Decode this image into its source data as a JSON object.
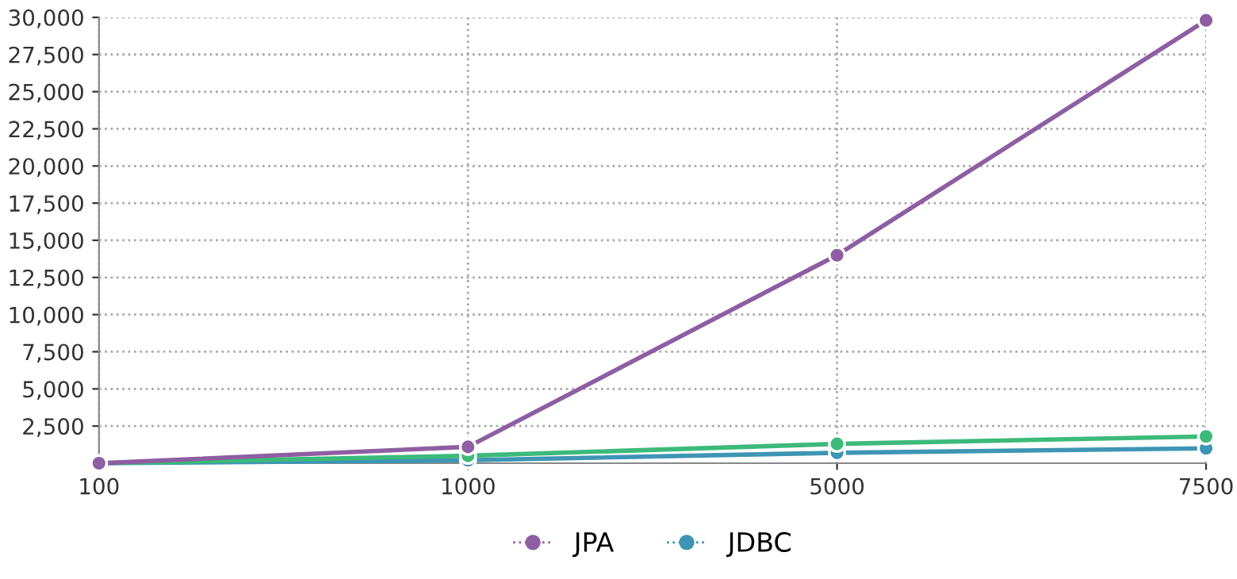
{
  "chart_data": {
    "type": "line",
    "categories": [
      "100",
      "1000",
      "5000",
      "7500"
    ],
    "series": [
      {
        "name": "JPA",
        "color": "#8e5ea2",
        "values": [
          0,
          1100,
          14000,
          29800
        ]
      },
      {
        "color": "#3cba7a",
        "values": [
          0,
          500,
          1300,
          1800
        ]
      },
      {
        "name": "JDBC",
        "color": "#3e95b5",
        "values": [
          0,
          200,
          700,
          1000
        ]
      }
    ],
    "ylim": [
      0,
      30000
    ],
    "yticks": [
      {
        "value": 2500,
        "label": "2,500"
      },
      {
        "value": 5000,
        "label": "5,000"
      },
      {
        "value": 7500,
        "label": "7,500"
      },
      {
        "value": 10000,
        "label": "10,000"
      },
      {
        "value": 12500,
        "label": "12,500"
      },
      {
        "value": 15000,
        "label": "15,000"
      },
      {
        "value": 17500,
        "label": "17,500"
      },
      {
        "value": 20000,
        "label": "20,000"
      },
      {
        "value": 22500,
        "label": "22,500"
      },
      {
        "value": 25000,
        "label": "25,000"
      },
      {
        "value": 27500,
        "label": "27,500"
      },
      {
        "value": 30000,
        "label": "30,000"
      }
    ],
    "grid": true,
    "legend": "bottom",
    "marker": "circle",
    "line_style": "solid"
  }
}
